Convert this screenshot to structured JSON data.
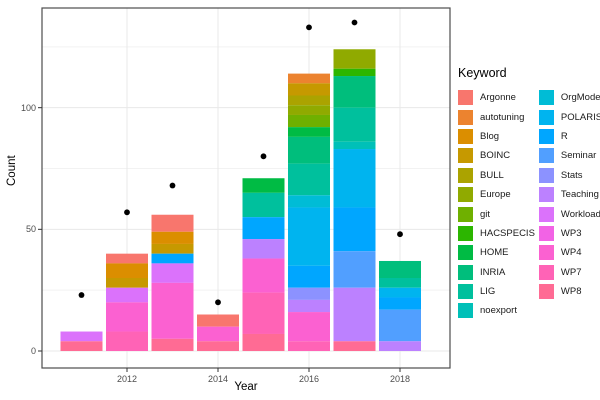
{
  "chart_data": {
    "type": "bar",
    "stacked": true,
    "title": "",
    "xlabel": "Year",
    "ylabel": "Count",
    "x_ticks": [
      2012,
      2014,
      2016,
      2018
    ],
    "y_ticks": [
      0,
      50,
      100
    ],
    "y_minor_gridlines": [
      25,
      75,
      125
    ],
    "xlim": [
      2010.1,
      2019.0
    ],
    "ylim": [
      -7,
      141
    ],
    "grid": true,
    "legend_position": "right",
    "legend_title": "Keyword",
    "keywords": [
      {
        "name": "Argonne",
        "color": "#F8766D"
      },
      {
        "name": "autotuning",
        "color": "#EC832F"
      },
      {
        "name": "Blog",
        "color": "#DB8E00"
      },
      {
        "name": "BOINC",
        "color": "#C69900"
      },
      {
        "name": "BULL",
        "color": "#ABA300"
      },
      {
        "name": "Europe",
        "color": "#90AA00"
      },
      {
        "name": "git",
        "color": "#6FB000"
      },
      {
        "name": "HACSPECIS",
        "color": "#2CB600"
      },
      {
        "name": "HOME",
        "color": "#00BB44"
      },
      {
        "name": "INRIA",
        "color": "#00BE7C"
      },
      {
        "name": "LIG",
        "color": "#00C09D"
      },
      {
        "name": "noexport",
        "color": "#00C0B8"
      },
      {
        "name": "OrgMode",
        "color": "#00BCD6"
      },
      {
        "name": "POLARIS",
        "color": "#00B4EF"
      },
      {
        "name": "R",
        "color": "#00A6FF"
      },
      {
        "name": "Seminar",
        "color": "#519FFF"
      },
      {
        "name": "Stats",
        "color": "#8C92FF"
      },
      {
        "name": "Teaching",
        "color": "#BC81FF"
      },
      {
        "name": "Workload",
        "color": "#DB72FB"
      },
      {
        "name": "WP3",
        "color": "#F263E5"
      },
      {
        "name": "WP4",
        "color": "#FB61D1"
      },
      {
        "name": "WP7",
        "color": "#FF63B6"
      },
      {
        "name": "WP8",
        "color": "#FF6B94"
      }
    ],
    "legend_column_split": 12,
    "bars": [
      {
        "year": 2011,
        "total": 8,
        "segments": [
          {
            "keyword": "Workload",
            "value": 4
          },
          {
            "keyword": "WP8",
            "value": 4
          }
        ]
      },
      {
        "year": 2012,
        "total": 40,
        "segments": [
          {
            "keyword": "Argonne",
            "value": 4
          },
          {
            "keyword": "Blog",
            "value": 6
          },
          {
            "keyword": "BOINC",
            "value": 4
          },
          {
            "keyword": "Workload",
            "value": 6
          },
          {
            "keyword": "WP4",
            "value": 12
          },
          {
            "keyword": "WP7",
            "value": 8
          }
        ]
      },
      {
        "year": 2013,
        "total": 56,
        "segments": [
          {
            "keyword": "Argonne",
            "value": 7
          },
          {
            "keyword": "Blog",
            "value": 5
          },
          {
            "keyword": "BOINC",
            "value": 4
          },
          {
            "keyword": "R",
            "value": 4
          },
          {
            "keyword": "Workload",
            "value": 8
          },
          {
            "keyword": "WP4",
            "value": 23
          },
          {
            "keyword": "WP8",
            "value": 5
          }
        ]
      },
      {
        "year": 2014,
        "total": 15,
        "segments": [
          {
            "keyword": "Argonne",
            "value": 5
          },
          {
            "keyword": "WP4",
            "value": 6
          },
          {
            "keyword": "WP8",
            "value": 4
          }
        ]
      },
      {
        "year": 2015,
        "total": 71,
        "segments": [
          {
            "keyword": "HOME",
            "value": 6
          },
          {
            "keyword": "LIG",
            "value": 10
          },
          {
            "keyword": "R",
            "value": 9
          },
          {
            "keyword": "Teaching",
            "value": 8
          },
          {
            "keyword": "WP4",
            "value": 14
          },
          {
            "keyword": "WP7",
            "value": 17
          },
          {
            "keyword": "WP8",
            "value": 7
          }
        ]
      },
      {
        "year": 2016,
        "total": 114,
        "segments": [
          {
            "keyword": "autotuning",
            "value": 4
          },
          {
            "keyword": "BOINC",
            "value": 5
          },
          {
            "keyword": "BULL",
            "value": 4
          },
          {
            "keyword": "Europe",
            "value": 4
          },
          {
            "keyword": "git",
            "value": 5
          },
          {
            "keyword": "HOME",
            "value": 4
          },
          {
            "keyword": "INRIA",
            "value": 11
          },
          {
            "keyword": "LIG",
            "value": 13
          },
          {
            "keyword": "OrgMode",
            "value": 5
          },
          {
            "keyword": "POLARIS",
            "value": 24
          },
          {
            "keyword": "R",
            "value": 9
          },
          {
            "keyword": "Stats",
            "value": 5
          },
          {
            "keyword": "Teaching",
            "value": 5
          },
          {
            "keyword": "WP4",
            "value": 12
          },
          {
            "keyword": "WP7",
            "value": 4
          }
        ]
      },
      {
        "year": 2017,
        "total": 124,
        "segments": [
          {
            "keyword": "Europe",
            "value": 8
          },
          {
            "keyword": "HACSPECIS",
            "value": 3
          },
          {
            "keyword": "INRIA",
            "value": 13
          },
          {
            "keyword": "LIG",
            "value": 14
          },
          {
            "keyword": "noexport",
            "value": 3
          },
          {
            "keyword": "POLARIS",
            "value": 24
          },
          {
            "keyword": "R",
            "value": 18
          },
          {
            "keyword": "Seminar",
            "value": 15
          },
          {
            "keyword": "Teaching",
            "value": 22
          },
          {
            "keyword": "WP8",
            "value": 4
          }
        ]
      },
      {
        "year": 2018,
        "total": 37,
        "segments": [
          {
            "keyword": "INRIA",
            "value": 7
          },
          {
            "keyword": "LIG",
            "value": 4
          },
          {
            "keyword": "POLARIS",
            "value": 4
          },
          {
            "keyword": "R",
            "value": 5
          },
          {
            "keyword": "Seminar",
            "value": 13
          },
          {
            "keyword": "Teaching",
            "value": 4
          }
        ]
      }
    ],
    "points": {
      "name": "yearly-total-dots",
      "color": "#000000",
      "x": [
        2011,
        2012,
        2013,
        2014,
        2015,
        2016,
        2017,
        2018
      ],
      "y": [
        23,
        57,
        68,
        20,
        80,
        133,
        135,
        48
      ]
    }
  }
}
